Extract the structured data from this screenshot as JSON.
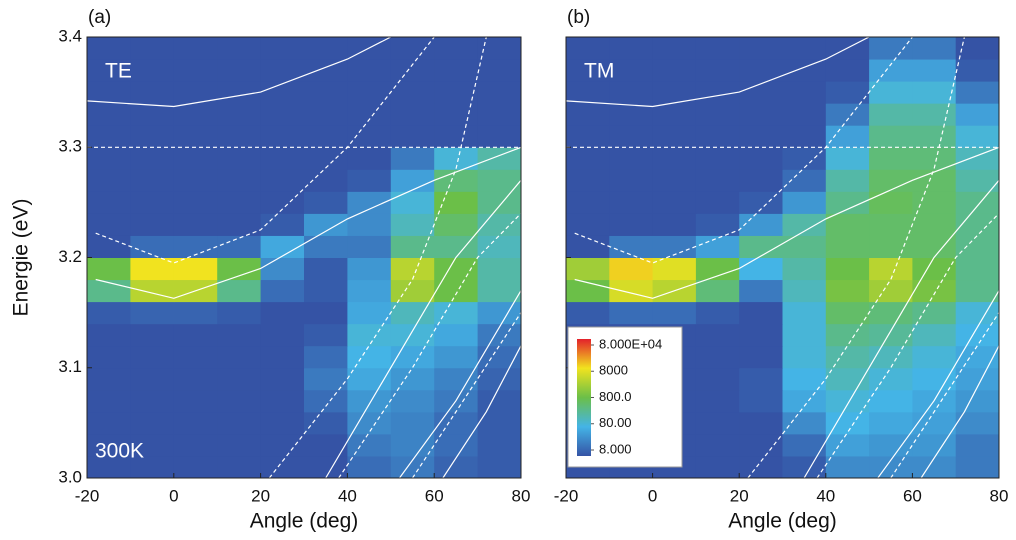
{
  "chart_data": [
    {
      "type": "heatmap",
      "panel_label": "(a)",
      "annotations": [
        "TE",
        "300K"
      ],
      "xlabel": "Angle (deg)",
      "ylabel": "Energie (eV)",
      "xlim": [
        -20,
        80
      ],
      "xticks": [
        -20,
        0,
        20,
        40,
        60,
        80
      ],
      "ylim": [
        3.0,
        3.4
      ],
      "yticks": [
        {
          "value": 3.0,
          "label": "3.0"
        },
        3.1,
        3.2,
        3.3,
        3.4
      ],
      "show_ytick_labels": true,
      "color_scale": "log",
      "colormap": [
        "#3553a5",
        "#44b4e6",
        "#6bbf48",
        "#f1e31f",
        "#e3212b"
      ],
      "zlim": [
        8,
        80000
      ],
      "xbins": [
        -20,
        -10,
        0,
        10,
        20,
        30,
        40,
        50,
        60,
        70,
        80
      ],
      "ybins": [
        3.0,
        3.02,
        3.04,
        3.06,
        3.08,
        3.1,
        3.12,
        3.14,
        3.16,
        3.18,
        3.2,
        3.22,
        3.24,
        3.26,
        3.28,
        3.3,
        3.32,
        3.34,
        3.36,
        3.38,
        3.4
      ],
      "z": [
        [
          8,
          8,
          8,
          8,
          8,
          8,
          15,
          20,
          12,
          10
        ],
        [
          8,
          8,
          8,
          8,
          8,
          8,
          20,
          25,
          15,
          10
        ],
        [
          8,
          8,
          8,
          8,
          8,
          10,
          30,
          25,
          15,
          10
        ],
        [
          8,
          8,
          8,
          8,
          8,
          15,
          40,
          30,
          20,
          10
        ],
        [
          8,
          8,
          8,
          8,
          8,
          20,
          60,
          40,
          25,
          12
        ],
        [
          8,
          8,
          8,
          8,
          8,
          15,
          80,
          60,
          40,
          15
        ],
        [
          8,
          8,
          8,
          8,
          8,
          10,
          100,
          100,
          60,
          20
        ],
        [
          10,
          12,
          12,
          10,
          8,
          8,
          60,
          150,
          100,
          40
        ],
        [
          300,
          3000,
          3000,
          300,
          15,
          10,
          50,
          2000,
          800,
          200
        ],
        [
          800,
          8000,
          8000,
          800,
          30,
          10,
          40,
          3000,
          800,
          200
        ],
        [
          8,
          15,
          15,
          15,
          60,
          20,
          20,
          300,
          300,
          150
        ],
        [
          8,
          8,
          8,
          8,
          10,
          40,
          30,
          150,
          500,
          200
        ],
        [
          8,
          8,
          8,
          8,
          8,
          10,
          30,
          100,
          800,
          300
        ],
        [
          8,
          8,
          8,
          8,
          8,
          8,
          10,
          50,
          400,
          300
        ],
        [
          8,
          8,
          8,
          8,
          8,
          8,
          8,
          20,
          100,
          200
        ],
        [
          8,
          8,
          8,
          8,
          8,
          8,
          8,
          8,
          8,
          8
        ],
        [
          8,
          8,
          8,
          8,
          8,
          8,
          8,
          8,
          8,
          8
        ],
        [
          8,
          8,
          8,
          8,
          8,
          8,
          8,
          8,
          8,
          8
        ],
        [
          8,
          8,
          8,
          8,
          8,
          8,
          8,
          8,
          8,
          8
        ],
        [
          8,
          8,
          8,
          8,
          8,
          8,
          8,
          8,
          8,
          8
        ]
      ],
      "curve_color": "#ffffff",
      "curves": [
        {
          "dash": false,
          "x": [
            -20,
            0,
            20,
            40,
            50
          ],
          "y": [
            3.342,
            3.337,
            3.35,
            3.38,
            3.4
          ]
        },
        {
          "dash": true,
          "x": [
            -18,
            0,
            20,
            40,
            50,
            60
          ],
          "y": [
            3.222,
            3.195,
            3.225,
            3.3,
            3.35,
            3.4
          ]
        },
        {
          "dash": false,
          "x": [
            -18,
            0,
            20,
            40,
            60,
            80
          ],
          "y": [
            3.18,
            3.163,
            3.19,
            3.235,
            3.27,
            3.3
          ]
        },
        {
          "dash": true,
          "x": [
            -20,
            80
          ],
          "y": [
            3.3,
            3.3
          ]
        },
        {
          "dash": true,
          "x": [
            22,
            40,
            55,
            65,
            72
          ],
          "y": [
            3.0,
            3.09,
            3.18,
            3.28,
            3.4
          ]
        },
        {
          "dash": false,
          "x": [
            35,
            50,
            65,
            80
          ],
          "y": [
            3.0,
            3.1,
            3.2,
            3.27
          ]
        },
        {
          "dash": true,
          "x": [
            38,
            55,
            70,
            80
          ],
          "y": [
            3.0,
            3.1,
            3.2,
            3.24
          ]
        },
        {
          "dash": false,
          "x": [
            52,
            65,
            80
          ],
          "y": [
            3.0,
            3.07,
            3.17
          ]
        },
        {
          "dash": true,
          "x": [
            55,
            70,
            80
          ],
          "y": [
            3.0,
            3.09,
            3.15
          ]
        },
        {
          "dash": false,
          "x": [
            62,
            72,
            80
          ],
          "y": [
            3.0,
            3.06,
            3.12
          ]
        }
      ]
    },
    {
      "type": "heatmap",
      "panel_label": "(b)",
      "annotations": [
        "TM"
      ],
      "xlabel": "Angle (deg)",
      "xlim": [
        -20,
        80
      ],
      "xticks": [
        -20,
        0,
        20,
        40,
        60,
        80
      ],
      "ylim": [
        3.0,
        3.4
      ],
      "yticks": [
        3.0,
        3.1,
        3.2,
        3.3,
        3.4
      ],
      "show_ytick_labels": false,
      "color_scale": "log",
      "colormap": [
        "#3553a5",
        "#44b4e6",
        "#6bbf48",
        "#f1e31f",
        "#e3212b"
      ],
      "zlim": [
        8,
        80000
      ],
      "colorbar_ticks": [
        {
          "value": 80000,
          "label": "8.000E+04"
        },
        8000,
        {
          "value": 800,
          "label": "800.0"
        },
        {
          "value": 80,
          "label": "80.00"
        },
        {
          "value": 8,
          "label": "8.000"
        }
      ],
      "xbins": [
        -20,
        -10,
        0,
        10,
        20,
        30,
        40,
        50,
        60,
        70,
        80
      ],
      "ybins": [
        3.0,
        3.02,
        3.04,
        3.06,
        3.08,
        3.1,
        3.12,
        3.14,
        3.16,
        3.18,
        3.2,
        3.22,
        3.24,
        3.26,
        3.28,
        3.3,
        3.32,
        3.34,
        3.36,
        3.38,
        3.4
      ],
      "z": [
        [
          8,
          8,
          8,
          8,
          8,
          10,
          30,
          30,
          30,
          20
        ],
        [
          8,
          8,
          8,
          8,
          8,
          15,
          50,
          40,
          40,
          20
        ],
        [
          8,
          8,
          8,
          8,
          8,
          30,
          80,
          60,
          50,
          30
        ],
        [
          8,
          8,
          8,
          8,
          10,
          60,
          100,
          80,
          60,
          40
        ],
        [
          8,
          8,
          8,
          8,
          10,
          80,
          150,
          100,
          80,
          50
        ],
        [
          8,
          8,
          8,
          8,
          8,
          100,
          200,
          150,
          100,
          60
        ],
        [
          8,
          8,
          8,
          8,
          8,
          100,
          300,
          250,
          150,
          80
        ],
        [
          10,
          15,
          15,
          10,
          8,
          100,
          500,
          400,
          300,
          100
        ],
        [
          800,
          5000,
          3000,
          400,
          20,
          150,
          1000,
          2000,
          1000,
          300
        ],
        [
          2000,
          10000,
          6000,
          800,
          80,
          200,
          800,
          3000,
          800,
          300
        ],
        [
          8,
          20,
          20,
          50,
          300,
          300,
          500,
          500,
          500,
          300
        ],
        [
          8,
          8,
          8,
          10,
          40,
          200,
          500,
          500,
          500,
          300
        ],
        [
          8,
          8,
          8,
          8,
          10,
          40,
          300,
          600,
          500,
          300
        ],
        [
          8,
          8,
          8,
          8,
          8,
          15,
          200,
          500,
          500,
          200
        ],
        [
          8,
          8,
          8,
          8,
          8,
          10,
          100,
          400,
          400,
          150
        ],
        [
          8,
          8,
          8,
          8,
          8,
          8,
          50,
          300,
          300,
          100
        ],
        [
          8,
          8,
          8,
          8,
          8,
          8,
          20,
          200,
          200,
          50
        ],
        [
          8,
          8,
          8,
          8,
          8,
          8,
          10,
          100,
          100,
          20
        ],
        [
          8,
          8,
          8,
          8,
          8,
          8,
          8,
          50,
          50,
          10
        ],
        [
          8,
          8,
          8,
          8,
          8,
          8,
          8,
          20,
          20,
          8
        ]
      ],
      "curve_color": "#ffffff",
      "curves": [
        {
          "dash": false,
          "x": [
            -20,
            0,
            20,
            40,
            50
          ],
          "y": [
            3.342,
            3.337,
            3.35,
            3.38,
            3.4
          ]
        },
        {
          "dash": true,
          "x": [
            -18,
            0,
            20,
            40,
            50,
            60
          ],
          "y": [
            3.222,
            3.195,
            3.225,
            3.3,
            3.35,
            3.4
          ]
        },
        {
          "dash": false,
          "x": [
            -18,
            0,
            20,
            40,
            60,
            80
          ],
          "y": [
            3.18,
            3.163,
            3.19,
            3.235,
            3.27,
            3.3
          ]
        },
        {
          "dash": true,
          "x": [
            -20,
            80
          ],
          "y": [
            3.3,
            3.3
          ]
        },
        {
          "dash": true,
          "x": [
            22,
            40,
            55,
            65,
            72
          ],
          "y": [
            3.0,
            3.09,
            3.18,
            3.28,
            3.4
          ]
        },
        {
          "dash": false,
          "x": [
            35,
            50,
            65,
            80
          ],
          "y": [
            3.0,
            3.1,
            3.2,
            3.27
          ]
        },
        {
          "dash": true,
          "x": [
            38,
            55,
            70,
            80
          ],
          "y": [
            3.0,
            3.1,
            3.2,
            3.24
          ]
        },
        {
          "dash": false,
          "x": [
            52,
            65,
            80
          ],
          "y": [
            3.0,
            3.07,
            3.17
          ]
        },
        {
          "dash": true,
          "x": [
            55,
            70,
            80
          ],
          "y": [
            3.0,
            3.09,
            3.15
          ]
        },
        {
          "dash": false,
          "x": [
            62,
            72,
            80
          ],
          "y": [
            3.0,
            3.06,
            3.12
          ]
        }
      ]
    }
  ]
}
